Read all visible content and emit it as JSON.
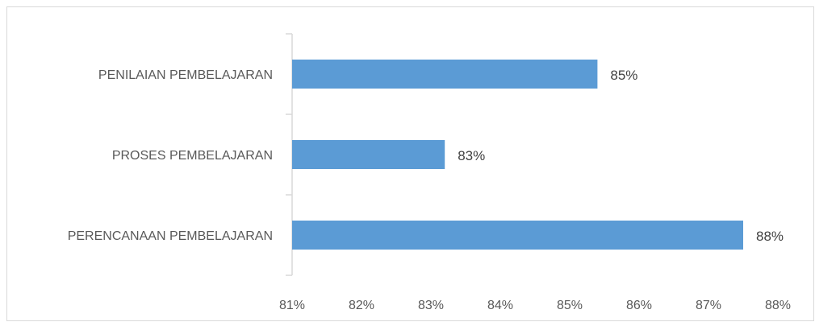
{
  "chart_data": {
    "type": "bar",
    "orientation": "horizontal",
    "categories": [
      "PENILAIAN PEMBELAJARAN",
      "PROSES PEMBELAJARAN",
      "PERENCANAAN PEMBELAJARAN"
    ],
    "values": [
      85.4,
      83.2,
      87.5
    ],
    "data_labels": [
      "85%",
      "83%",
      "88%"
    ],
    "xlim": [
      81,
      88
    ],
    "x_ticks": [
      81,
      82,
      83,
      84,
      85,
      86,
      87,
      88
    ],
    "x_tick_labels": [
      "81%",
      "82%",
      "83%",
      "84%",
      "85%",
      "86%",
      "87%",
      "88%"
    ],
    "title": "",
    "xlabel": "",
    "ylabel": "",
    "grid": false,
    "legend": "none",
    "bar_color": "#5b9bd5",
    "axis_color": "#d9d9d9"
  }
}
